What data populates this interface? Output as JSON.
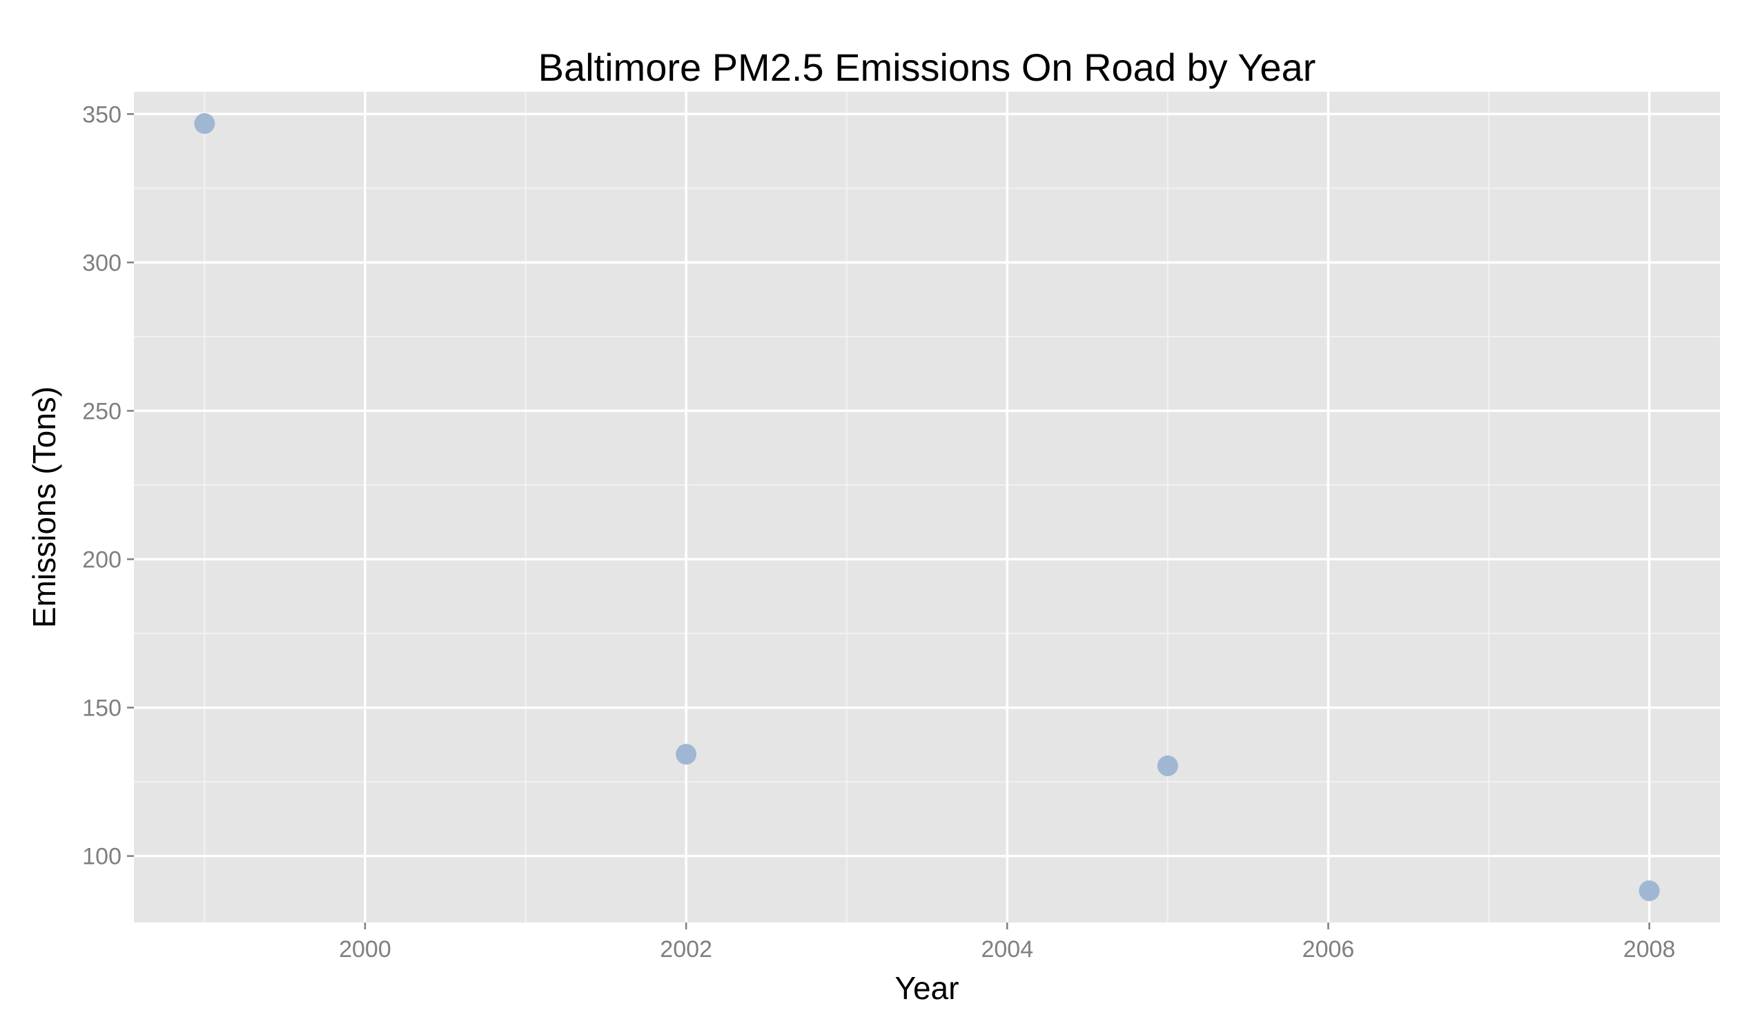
{
  "chart_data": {
    "type": "scatter",
    "title": "Baltimore PM2.5 Emissions On Road by Year",
    "xlabel": "Year",
    "ylabel": "Emissions (Tons)",
    "x": [
      1999,
      2002,
      2005,
      2008
    ],
    "y": [
      346.8,
      134.3,
      130.4,
      88.3
    ],
    "xlim": [
      1998.56,
      2008.44
    ],
    "ylim": [
      77.6,
      357.5
    ],
    "x_ticks": [
      2000,
      2002,
      2004,
      2006,
      2008
    ],
    "y_ticks": [
      100,
      150,
      200,
      250,
      300,
      350
    ],
    "x_tick_labels": [
      "2000",
      "2002",
      "2004",
      "2006",
      "2008"
    ],
    "y_tick_labels": [
      "100",
      "150",
      "200",
      "250",
      "300",
      "350"
    ],
    "grid": true,
    "legend": "none",
    "colors": {
      "panel_background": "#e5e5e5",
      "grid_major": "#ffffff",
      "grid_minor": "#f2f2f2",
      "point": "#9fb7d3",
      "tick_label": "#7f7f7f"
    }
  }
}
